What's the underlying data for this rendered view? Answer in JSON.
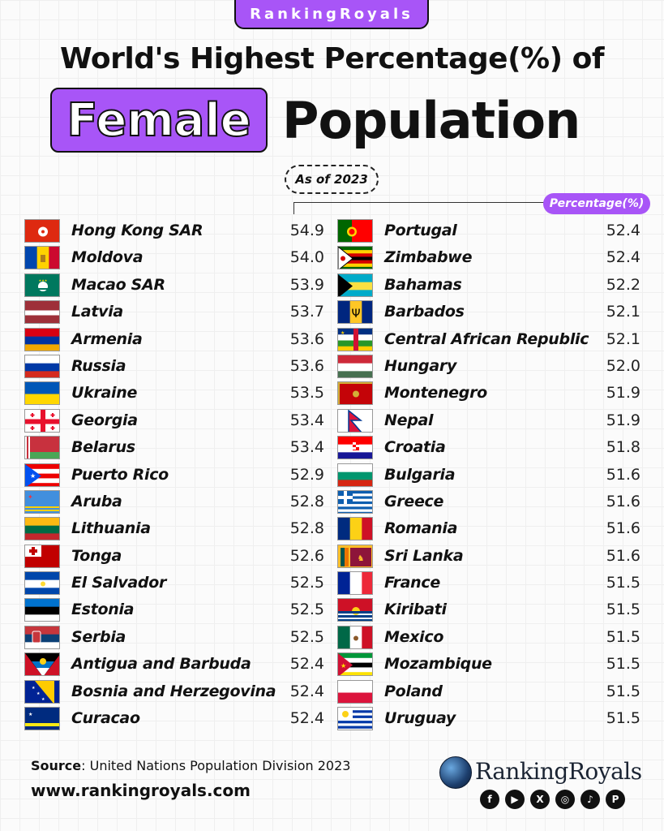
{
  "brand": "RankingRoyals",
  "title_line1": "World's Highest Percentage(%) of",
  "title_highlight": "Female",
  "title_rest": "Population",
  "as_of": "As of 2023",
  "percent_label": "Percentage(%)",
  "source_label": "Source",
  "source_text": ": United Nations Population Division 2023",
  "website": "www.rankingroyals.com",
  "logo_text": "RankingRoyals",
  "social_icons": [
    "facebook-icon",
    "youtube-icon",
    "x-icon",
    "instagram-icon",
    "tiktok-icon",
    "pinterest-icon"
  ],
  "colors": {
    "accent": "#a855f7",
    "text": "#111111"
  },
  "chart_data": {
    "type": "table",
    "title": "World's Highest Percentage(%) of Female Population",
    "subtitle": "As of 2023",
    "value_label": "Percentage(%)",
    "left": [
      {
        "country": "Hong Kong SAR",
        "value": "54.9",
        "flag": "hk"
      },
      {
        "country": "Moldova",
        "value": "54.0",
        "flag": "md"
      },
      {
        "country": "Macao SAR",
        "value": "53.9",
        "flag": "mo"
      },
      {
        "country": "Latvia",
        "value": "53.7",
        "flag": "lv"
      },
      {
        "country": "Armenia",
        "value": "53.6",
        "flag": "am"
      },
      {
        "country": "Russia",
        "value": "53.6",
        "flag": "ru"
      },
      {
        "country": "Ukraine",
        "value": "53.5",
        "flag": "ua"
      },
      {
        "country": "Georgia",
        "value": "53.4",
        "flag": "ge"
      },
      {
        "country": "Belarus",
        "value": "53.4",
        "flag": "by"
      },
      {
        "country": "Puerto Rico",
        "value": "52.9",
        "flag": "pr"
      },
      {
        "country": "Aruba",
        "value": "52.8",
        "flag": "aw"
      },
      {
        "country": "Lithuania",
        "value": "52.8",
        "flag": "lt"
      },
      {
        "country": "Tonga",
        "value": "52.6",
        "flag": "to"
      },
      {
        "country": "El Salvador",
        "value": "52.5",
        "flag": "sv"
      },
      {
        "country": "Estonia",
        "value": "52.5",
        "flag": "ee"
      },
      {
        "country": "Serbia",
        "value": "52.5",
        "flag": "rs"
      },
      {
        "country": "Antigua and Barbuda",
        "value": "52.4",
        "flag": "ag"
      },
      {
        "country": "Bosnia and Herzegovina",
        "value": "52.4",
        "flag": "ba"
      },
      {
        "country": "Curacao",
        "value": "52.4",
        "flag": "cw"
      }
    ],
    "right": [
      {
        "country": "Portugal",
        "value": "52.4",
        "flag": "pt"
      },
      {
        "country": "Zimbabwe",
        "value": "52.4",
        "flag": "zw"
      },
      {
        "country": "Bahamas",
        "value": "52.2",
        "flag": "bs"
      },
      {
        "country": "Barbados",
        "value": "52.1",
        "flag": "bb"
      },
      {
        "country": "Central African Republic",
        "value": "52.1",
        "flag": "cf"
      },
      {
        "country": "Hungary",
        "value": "52.0",
        "flag": "hu"
      },
      {
        "country": "Montenegro",
        "value": "51.9",
        "flag": "me"
      },
      {
        "country": "Nepal",
        "value": "51.9",
        "flag": "np"
      },
      {
        "country": "Croatia",
        "value": "51.8",
        "flag": "hr"
      },
      {
        "country": "Bulgaria",
        "value": "51.6",
        "flag": "bg"
      },
      {
        "country": "Greece",
        "value": "51.6",
        "flag": "gr"
      },
      {
        "country": "Romania",
        "value": "51.6",
        "flag": "ro"
      },
      {
        "country": "Sri Lanka",
        "value": "51.6",
        "flag": "lk"
      },
      {
        "country": "France",
        "value": "51.5",
        "flag": "fr"
      },
      {
        "country": "Kiribati",
        "value": "51.5",
        "flag": "ki"
      },
      {
        "country": "Mexico",
        "value": "51.5",
        "flag": "mx"
      },
      {
        "country": "Mozambique",
        "value": "51.5",
        "flag": "mz"
      },
      {
        "country": "Poland",
        "value": "51.5",
        "flag": "pl"
      },
      {
        "country": "Uruguay",
        "value": "51.5",
        "flag": "uy"
      }
    ]
  }
}
